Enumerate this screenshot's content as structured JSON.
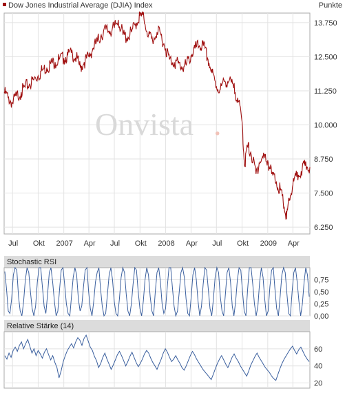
{
  "header": {
    "title": "Dow Jones Industrial Average (DJIA) Index",
    "unit": "Punkte",
    "legend_color": "#a01010"
  },
  "watermark": {
    "text": "Onvista",
    "dot": "."
  },
  "chart_data": [
    {
      "type": "line",
      "title": "Dow Jones Industrial Average (DJIA) Index",
      "ylabel": "Punkte",
      "ylim": [
        6000,
        14100
      ],
      "y_ticks": [
        6250,
        7500,
        8750,
        10000,
        11250,
        12500,
        13750
      ],
      "y_tick_labels": [
        "6.250",
        "7.500",
        "8.750",
        "10.000",
        "11.250",
        "12.500",
        "13.750"
      ],
      "x_range": [
        "2006-06-01",
        "2009-06-01"
      ],
      "x_ticks": [
        "2006-07-01",
        "2006-10-01",
        "2007-01-01",
        "2007-04-01",
        "2007-07-01",
        "2007-10-01",
        "2008-01-01",
        "2008-04-01",
        "2008-07-01",
        "2008-10-01",
        "2009-01-01",
        "2009-04-01"
      ],
      "x_tick_labels": [
        "Jul",
        "Okt",
        "2007",
        "Apr",
        "Jul",
        "Okt",
        "2008",
        "Apr",
        "Jul",
        "Okt",
        "2009",
        "Apr"
      ],
      "grid": true,
      "color": "#a01010",
      "series": [
        {
          "x": [
            "2006-06-01",
            "2006-06-15",
            "2006-07-01",
            "2006-07-15",
            "2006-08-01",
            "2006-08-15",
            "2006-09-01",
            "2006-09-15",
            "2006-10-01",
            "2006-10-15",
            "2006-11-01",
            "2006-11-15",
            "2006-12-01",
            "2006-12-15",
            "2007-01-01",
            "2007-01-15",
            "2007-02-01",
            "2007-02-15",
            "2007-03-01",
            "2007-03-15",
            "2007-04-01",
            "2007-04-15",
            "2007-05-01",
            "2007-05-15",
            "2007-06-01",
            "2007-06-15",
            "2007-07-01",
            "2007-07-15",
            "2007-08-01",
            "2007-08-15",
            "2007-09-01",
            "2007-09-15",
            "2007-10-01",
            "2007-10-15",
            "2007-11-01",
            "2007-11-15",
            "2007-12-01",
            "2007-12-15",
            "2008-01-01",
            "2008-01-15",
            "2008-02-01",
            "2008-02-15",
            "2008-03-01",
            "2008-03-15",
            "2008-04-01",
            "2008-04-15",
            "2008-05-01",
            "2008-05-15",
            "2008-06-01",
            "2008-06-15",
            "2008-07-01",
            "2008-07-15",
            "2008-08-01",
            "2008-08-15",
            "2008-09-01",
            "2008-09-15",
            "2008-10-01",
            "2008-10-10",
            "2008-10-20",
            "2008-11-01",
            "2008-11-20",
            "2008-12-01",
            "2008-12-15",
            "2009-01-01",
            "2009-01-15",
            "2009-02-01",
            "2009-02-15",
            "2009-03-01",
            "2009-03-09",
            "2009-03-20",
            "2009-04-01",
            "2009-04-15",
            "2009-05-01",
            "2009-05-15",
            "2009-06-01"
          ],
          "values": [
            11200,
            11000,
            10800,
            11050,
            11200,
            11380,
            11500,
            11650,
            11800,
            12000,
            12100,
            12250,
            12300,
            12400,
            12450,
            12550,
            12600,
            12450,
            12100,
            12300,
            12500,
            12800,
            13050,
            13300,
            13500,
            13450,
            13550,
            13850,
            13300,
            13200,
            13400,
            13700,
            14000,
            13900,
            13300,
            13100,
            13400,
            13300,
            12800,
            12400,
            12300,
            12250,
            12100,
            12200,
            12550,
            12800,
            12900,
            12900,
            12400,
            11900,
            11400,
            11300,
            11600,
            11600,
            11350,
            11000,
            10100,
            8500,
            9200,
            9000,
            8200,
            8600,
            8800,
            8700,
            8200,
            7900,
            7600,
            7000,
            6550,
            7300,
            7800,
            8100,
            8300,
            8500,
            8450
          ]
        }
      ]
    },
    {
      "type": "line",
      "title": "Stochastic RSI",
      "ylim": [
        0,
        1
      ],
      "y_ticks": [
        0,
        0.25,
        0.5,
        0.75
      ],
      "y_tick_labels": [
        "0,00",
        "0,25",
        "0,50",
        "0,75"
      ],
      "grid": true,
      "color": "#3a5f9e",
      "series": [
        {
          "values": [
            0.92,
            0.55,
            0.1,
            0.05,
            0.35,
            0.85,
            1.0,
            0.95,
            0.4,
            0.1,
            0.0,
            0.3,
            0.75,
            1.0,
            0.9,
            0.5,
            0.15,
            0.0,
            0.2,
            0.7,
            1.0,
            1.0,
            0.6,
            0.2,
            0.05,
            0.45,
            0.9,
            1.0,
            0.7,
            0.3,
            0.0,
            0.1,
            0.55,
            0.95,
            1.0,
            0.65,
            0.25,
            0.05,
            0.0,
            0.4,
            0.8,
            1.0,
            0.85,
            0.35,
            0.1,
            0.2,
            0.6,
            0.95,
            1.0,
            0.5,
            0.15,
            0.0,
            0.3,
            0.7,
            0.9,
            1.0,
            0.55,
            0.2,
            0.0,
            0.05,
            0.45,
            0.85,
            1.0,
            0.75,
            0.3,
            0.05,
            0.0,
            0.35,
            0.8,
            1.0,
            0.9,
            0.45,
            0.1,
            0.0,
            0.25,
            0.65,
            1.0,
            0.95,
            0.5,
            0.15,
            0.0,
            0.3,
            0.75,
            1.0,
            0.85,
            0.4,
            0.1,
            0.0,
            0.5,
            0.9,
            1.0,
            0.7,
            0.25,
            0.05,
            0.15,
            0.6,
            1.0,
            1.0,
            0.6,
            0.2,
            0.0,
            0.1,
            0.5,
            0.9,
            1.0,
            0.8,
            0.35,
            0.05,
            0.0,
            0.4,
            0.85,
            1.0,
            0.75,
            0.3,
            0.0,
            0.2,
            0.65,
            1.0,
            0.95,
            0.55,
            0.15,
            0.0,
            0.35,
            0.8,
            1.0,
            0.9,
            0.4,
            0.1,
            0.0,
            0.45,
            0.9,
            1.0,
            0.7,
            0.2,
            0.0,
            0.3,
            0.75,
            1.0,
            0.95,
            0.5,
            0.1,
            0.0,
            0.55,
            1.0,
            1.0,
            0.65,
            0.25,
            0.0,
            0.2,
            0.7,
            1.0,
            0.8,
            0.35,
            0.0,
            0.1,
            0.6,
            0.95,
            1.0,
            0.55,
            0.15,
            0.0,
            0.4,
            0.85,
            1.0,
            0.9,
            0.45,
            0.05,
            0.0,
            0.5,
            0.9,
            1.0,
            0.7,
            0.3,
            0.0,
            0.25,
            0.7,
            1.0,
            0.85,
            0.4
          ]
        }
      ]
    },
    {
      "type": "line",
      "title": "Relative Stärke (14)",
      "ylim": [
        14,
        80
      ],
      "y_ticks": [
        20,
        40,
        60
      ],
      "y_tick_labels": [
        "20",
        "40",
        "60"
      ],
      "grid": true,
      "color": "#3a5f9e",
      "series": [
        {
          "values": [
            52,
            48,
            55,
            50,
            58,
            62,
            57,
            64,
            68,
            60,
            66,
            71,
            63,
            55,
            60,
            52,
            58,
            54,
            49,
            56,
            60,
            53,
            47,
            52,
            44,
            38,
            26,
            34,
            45,
            52,
            58,
            62,
            66,
            61,
            68,
            73,
            70,
            64,
            72,
            76,
            69,
            62,
            58,
            51,
            46,
            38,
            43,
            50,
            55,
            48,
            42,
            36,
            41,
            47,
            53,
            57,
            52,
            46,
            40,
            45,
            51,
            56,
            50,
            44,
            39,
            43,
            48,
            54,
            58,
            55,
            49,
            44,
            40,
            36,
            42,
            48,
            55,
            60,
            56,
            50,
            45,
            48,
            52,
            47,
            43,
            38,
            35,
            40,
            46,
            52,
            57,
            53,
            48,
            44,
            40,
            36,
            33,
            30,
            27,
            24,
            30,
            37,
            43,
            48,
            52,
            47,
            42,
            38,
            44,
            50,
            54,
            49,
            45,
            40,
            36,
            32,
            28,
            34,
            41,
            46,
            51,
            55,
            50,
            46,
            42,
            38,
            35,
            32,
            28,
            25,
            23,
            30,
            37,
            43,
            48,
            52,
            56,
            60,
            63,
            58,
            54,
            59,
            62,
            57,
            52,
            48,
            45
          ]
        }
      ]
    }
  ]
}
